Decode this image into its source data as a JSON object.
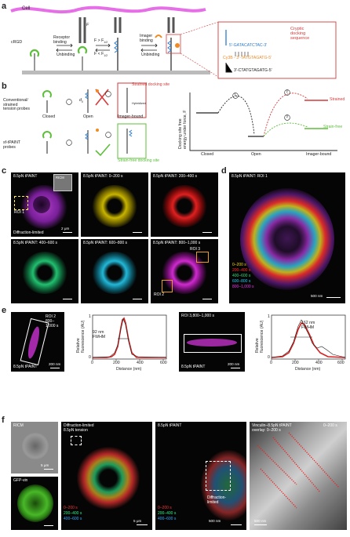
{
  "panels": {
    "a": {
      "label": "a",
      "cell": "Cell",
      "crgd": "cRGD",
      "receptor_binding": "Receptor\nbinding",
      "unbinding": "Unbinding",
      "f_gt": "F > F",
      "f_gt_sub": "1/2",
      "f_lt": "F < F",
      "f_lt_sub": "1/2",
      "imager_binding": "Imager\nbinding",
      "unbinding2": "Unbinding",
      "f": "F",
      "cryptic_title": "Cryptic\ndocking\nsequence",
      "seq_top": "5'-GATACATCTAC-3'",
      "seq_imager": "Cy3B - 3'-TATGTAGATG-5'",
      "seq_bottom": "3'-CTATGTAGATG-5'"
    },
    "b": {
      "label": "b",
      "conventional": "Conventional/\nstrained\ntension probes",
      "sf_tpaint": "sf-tPAINT\nprobes",
      "strained_docking": "Strained docking site",
      "strain_free_docking": "Strain-free docking site",
      "closed": "Closed",
      "open": "Open",
      "imager_bound": "Imager-bound",
      "d0": "d",
      "d0_sub": "0",
      "hybridized": "Hybridized",
      "yaxis": "Docking site free\nenergy under force, F",
      "strained": "Strained",
      "strain_free": "Strain-free",
      "step1": "1",
      "step2": "2",
      "step3": "3"
    },
    "c": {
      "label": "c",
      "tiles": [
        {
          "title": "8.5pN tPAINT",
          "sub": "Diffraction-limited",
          "scale": "2 μm",
          "roi": "ROI 1",
          "inset": "RICM"
        },
        {
          "title": "8.5pN tPAINT: 0–200 s"
        },
        {
          "title": "8.5pN tPAINT: 200–400 s"
        },
        {
          "title": "8.5pN tPAINT: 400–600 s"
        },
        {
          "title": "8.5pN tPAINT: 600–800 s"
        },
        {
          "title": "8.5pN tPAINT: 800–1,000 s",
          "roi2": "ROI 2",
          "roi3": "ROI 3"
        }
      ]
    },
    "d": {
      "label": "d",
      "title": "8.5pN tPAINT: ROI 1",
      "legend": [
        "0–200 s",
        "200–400 s",
        "400–600 s",
        "600–800 s",
        "800–1,000 s"
      ],
      "legend_colors": [
        "#ffd700",
        "#ff2a2a",
        "#33dd77",
        "#22ccee",
        "#ee33ee"
      ],
      "scale": "500 nm"
    },
    "e": {
      "label": "e",
      "roi2_title": "ROI 2\n800–\n1,000 s",
      "roi2_foot": "8.5pN tPAINT",
      "roi2_scale": "200 nm",
      "plot1": {
        "fwhm": "92 nm\nFWHM",
        "ylabel": "Relative\nfluorescence (AU)",
        "xlabel": "Distance (nm)",
        "xticks": [
          "0",
          "200",
          "400",
          "600"
        ],
        "yticks": [
          "0",
          "1"
        ]
      },
      "roi3_title": "ROI 3,800–1,000 s",
      "roi3_foot": "8.5pN tPAINT",
      "roi3_scale": "200 nm",
      "plot2": {
        "fwhm": "162 nm\nFWHM",
        "ylabel": "Relative\nfluorescence (AU)",
        "xlabel": "Distance (nm)",
        "xticks": [
          "0",
          "200",
          "400",
          "600"
        ],
        "yticks": [
          "0",
          "1"
        ]
      }
    },
    "f": {
      "label": "f",
      "ricm": "RICM",
      "ricm_scale": "5 μm",
      "gfp": "GFP-vin",
      "diff_title": "Diffraction-limited\n8.5pN tension",
      "diff_scale": "5 μm",
      "diff_legend": [
        "0–200 s",
        "200–400 s",
        "400–600 s"
      ],
      "diff_legend_colors": [
        "#ff3333",
        "#33ee88",
        "#33aaff"
      ],
      "tpaint_title": "8.5pN tPAINT",
      "tpaint_legend": [
        "0–200 s",
        "200–400 s",
        "400–600 s"
      ],
      "tpaint_inset": "Diffraction-\nlimited",
      "tpaint_scale": "500 nm",
      "overlay_title": "Vinculin–8.5pN tPAINT\noverlay: 0–200 s",
      "overlay_corner": "0–200 s",
      "overlay_scale": "500 nm"
    }
  }
}
